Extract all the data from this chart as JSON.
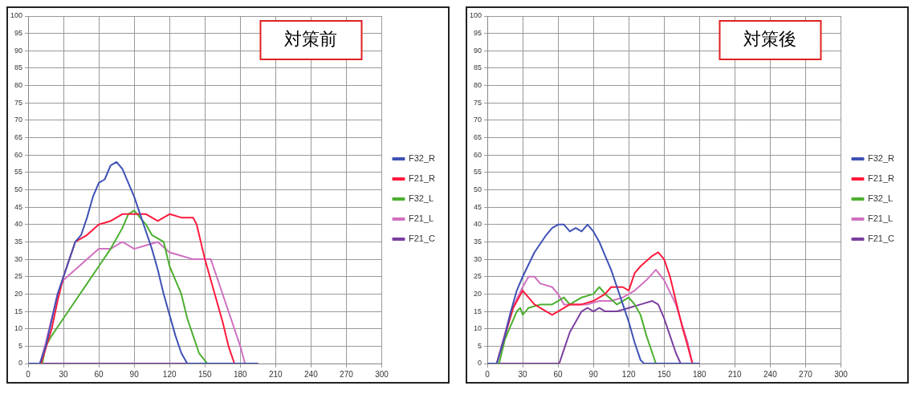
{
  "chart_data": [
    {
      "type": "line",
      "title": "対策前",
      "xlim": [
        0,
        300
      ],
      "xticks": [
        0,
        30,
        60,
        90,
        120,
        150,
        180,
        210,
        240,
        270,
        300
      ],
      "ylim": [
        0,
        100
      ],
      "yticks": [
        0,
        5,
        10,
        15,
        20,
        25,
        30,
        35,
        40,
        45,
        50,
        55,
        60,
        65,
        70,
        75,
        80,
        85,
        90,
        95,
        100
      ],
      "grid": true,
      "legend": "right",
      "marker": "none",
      "line_style": "solid",
      "series": [
        {
          "name": "F32_R",
          "color": "#3f51b5",
          "x": [
            0,
            10,
            15,
            25,
            30,
            40,
            45,
            50,
            55,
            60,
            65,
            70,
            75,
            80,
            85,
            90,
            95,
            100,
            105,
            110,
            115,
            120,
            125,
            130,
            135,
            195
          ],
          "values": [
            0,
            0,
            5,
            20,
            25,
            35,
            37,
            42,
            48,
            52,
            53,
            57,
            58,
            56,
            52,
            48,
            43,
            38,
            33,
            27,
            20,
            14,
            8,
            3,
            0,
            0
          ]
        },
        {
          "name": "F21_R",
          "color": "#ff1a3c",
          "x": [
            0,
            11,
            20,
            25,
            30,
            35,
            40,
            50,
            60,
            70,
            80,
            90,
            100,
            110,
            120,
            130,
            140,
            143,
            150,
            160,
            165,
            170,
            175,
            195
          ],
          "values": [
            0,
            0,
            10,
            18,
            25,
            30,
            35,
            37,
            40,
            41,
            43,
            43,
            43,
            41,
            43,
            42,
            42,
            40,
            30,
            18,
            12,
            5,
            0,
            0
          ]
        },
        {
          "name": "F32_L",
          "color": "#4caf2f",
          "x": [
            0,
            12,
            15,
            20,
            30,
            40,
            50,
            60,
            70,
            80,
            85,
            90,
            95,
            100,
            105,
            110,
            115,
            120,
            125,
            130,
            135,
            140,
            145,
            152,
            195
          ],
          "values": [
            0,
            0,
            5,
            8,
            13,
            18,
            23,
            28,
            33,
            39,
            43,
            44,
            42,
            40,
            37,
            36,
            35,
            28,
            24,
            20,
            13,
            8,
            3,
            0,
            0
          ]
        },
        {
          "name": "F21_L",
          "color": "#d070c0",
          "x": [
            0,
            10,
            15,
            20,
            25,
            30,
            40,
            50,
            60,
            70,
            80,
            90,
            100,
            110,
            120,
            130,
            140,
            150,
            155,
            160,
            170,
            180,
            184,
            195
          ],
          "values": [
            0,
            0,
            6,
            13,
            20,
            24,
            27,
            30,
            33,
            33,
            35,
            33,
            34,
            35,
            32,
            31,
            30,
            30,
            30,
            25,
            15,
            5,
            0,
            0
          ]
        },
        {
          "name": "F21_C",
          "color": "#7b3fa0",
          "x": [
            0,
            195
          ],
          "values": [
            0,
            0
          ]
        }
      ]
    },
    {
      "type": "line",
      "title": "対策後",
      "xlim": [
        0,
        300
      ],
      "xticks": [
        0,
        30,
        60,
        90,
        120,
        150,
        180,
        210,
        240,
        270,
        300
      ],
      "ylim": [
        0,
        100
      ],
      "yticks": [
        0,
        5,
        10,
        15,
        20,
        25,
        30,
        35,
        40,
        45,
        50,
        55,
        60,
        65,
        70,
        75,
        80,
        85,
        90,
        95,
        100
      ],
      "grid": true,
      "legend": "right",
      "marker": "none",
      "line_style": "solid",
      "series": [
        {
          "name": "F32_R",
          "color": "#3f51b5",
          "x": [
            0,
            8,
            15,
            20,
            25,
            30,
            40,
            50,
            55,
            60,
            65,
            70,
            75,
            80,
            85,
            90,
            95,
            100,
            105,
            110,
            115,
            120,
            125,
            130,
            133,
            180
          ],
          "values": [
            0,
            0,
            8,
            15,
            21,
            25,
            32,
            37,
            39,
            40,
            40,
            38,
            39,
            38,
            40,
            38,
            35,
            31,
            27,
            22,
            17,
            12,
            6,
            1,
            0,
            0
          ]
        },
        {
          "name": "F21_R",
          "color": "#ff1a3c",
          "x": [
            0,
            8,
            15,
            22,
            30,
            40,
            50,
            55,
            60,
            70,
            80,
            90,
            100,
            105,
            115,
            120,
            125,
            130,
            140,
            145,
            150,
            155,
            160,
            165,
            170,
            174,
            180
          ],
          "values": [
            0,
            0,
            8,
            16,
            21,
            17,
            15,
            14,
            15,
            17,
            17,
            18,
            20,
            22,
            22,
            21,
            26,
            28,
            31,
            32,
            30,
            25,
            18,
            11,
            5,
            0,
            0
          ]
        },
        {
          "name": "F32_L",
          "color": "#4caf2f",
          "x": [
            0,
            10,
            15,
            20,
            25,
            28,
            30,
            35,
            45,
            55,
            60,
            65,
            70,
            80,
            90,
            95,
            100,
            110,
            115,
            120,
            125,
            130,
            135,
            140,
            143,
            180
          ],
          "values": [
            0,
            0,
            7,
            11,
            15,
            16,
            14,
            16,
            17,
            17,
            18,
            19,
            17,
            19,
            20,
            22,
            20,
            17,
            18,
            19,
            17,
            14,
            8,
            3,
            0,
            0
          ]
        },
        {
          "name": "F21_L",
          "color": "#d070c0",
          "x": [
            0,
            8,
            20,
            30,
            35,
            40,
            45,
            55,
            60,
            65,
            75,
            85,
            95,
            105,
            115,
            125,
            135,
            143,
            150,
            160,
            170,
            174,
            180
          ],
          "values": [
            0,
            0,
            15,
            22,
            25,
            25,
            23,
            22,
            20,
            17,
            17,
            17,
            18,
            18,
            19,
            21,
            24,
            27,
            24,
            17,
            6,
            0,
            0
          ]
        },
        {
          "name": "F21_C",
          "color": "#7b3fa0",
          "x": [
            0,
            61,
            65,
            70,
            75,
            80,
            85,
            90,
            95,
            100,
            110,
            120,
            130,
            140,
            145,
            150,
            155,
            160,
            164,
            180
          ],
          "values": [
            0,
            0,
            4,
            9,
            12,
            15,
            16,
            15,
            16,
            15,
            15,
            16,
            17,
            18,
            17,
            13,
            8,
            3,
            0,
            0
          ]
        }
      ]
    }
  ]
}
